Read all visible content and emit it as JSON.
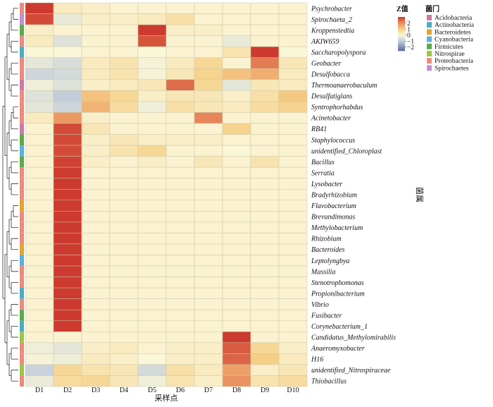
{
  "chart_data": {
    "type": "heatmap",
    "xlabel": "采样点",
    "ylabel": "菌属",
    "x": [
      "D1",
      "D2",
      "D3",
      "D4",
      "D5",
      "D6",
      "D7",
      "D8",
      "D9",
      "D10"
    ],
    "rows": [
      {
        "name": "Psychrobacter",
        "phylum": "Proteobacteria",
        "values": [
          3.0,
          0.3,
          0.2,
          0.1,
          0.1,
          0.1,
          0.1,
          0.1,
          0.1,
          0.1
        ]
      },
      {
        "name": "Spirochaeta_2",
        "phylum": "Spirochaetes",
        "values": [
          2.8,
          -0.3,
          0.2,
          0.2,
          0.3,
          0.6,
          0.1,
          0.1,
          0.1,
          0.1
        ]
      },
      {
        "name": "Kroppenstedtia",
        "phylum": "Firmicutes",
        "values": [
          0.2,
          0.1,
          0.1,
          0.1,
          3.0,
          0.2,
          0.2,
          0.1,
          0.1,
          0.1
        ]
      },
      {
        "name": "AKIW659",
        "phylum": "Proteobacteria",
        "values": [
          0.3,
          -0.5,
          0.1,
          0.1,
          2.7,
          0.1,
          0.1,
          -0.3,
          0.1,
          0.1
        ]
      },
      {
        "name": "Saccharopolyspora",
        "phylum": "Actinobacteria",
        "values": [
          0.0,
          0.0,
          0.1,
          0.1,
          0.0,
          0.1,
          0.1,
          0.5,
          3.0,
          0.0
        ]
      },
      {
        "name": "Geobacter",
        "phylum": "Proteobacteria",
        "values": [
          -0.4,
          -0.6,
          0.3,
          0.5,
          -0.1,
          0.3,
          0.8,
          0.1,
          2.2,
          0.4
        ]
      },
      {
        "name": "Desulfobacca",
        "phylum": "Proteobacteria",
        "values": [
          -0.8,
          -0.7,
          0.3,
          0.5,
          -0.1,
          0.4,
          0.9,
          1.2,
          1.5,
          0.3
        ]
      },
      {
        "name": "Thermoanaerobaculum",
        "phylum": "Acidobacteria",
        "values": [
          -0.2,
          -0.5,
          0.2,
          0.3,
          0.4,
          2.4,
          0.8,
          -0.4,
          0.4,
          0.3
        ]
      },
      {
        "name": "Desulfatiglans",
        "phylum": "Proteobacteria",
        "values": [
          -0.5,
          -1.0,
          1.2,
          0.8,
          0.2,
          0.4,
          0.4,
          0.2,
          0.6,
          1.1
        ]
      },
      {
        "name": "Syntrophorhabdus",
        "phylum": "Proteobacteria",
        "values": [
          -0.4,
          -0.8,
          1.4,
          0.7,
          -0.2,
          0.6,
          0.4,
          0.3,
          0.7,
          0.9
        ]
      },
      {
        "name": "Acinetobacter",
        "phylum": "Proteobacteria",
        "values": [
          0.3,
          1.8,
          0.2,
          0.1,
          0.1,
          0.1,
          2.1,
          0.1,
          0.1,
          0.1
        ]
      },
      {
        "name": "RB41",
        "phylum": "Acidobacteria",
        "values": [
          0.1,
          2.8,
          0.4,
          0.1,
          0.1,
          0.1,
          0.1,
          0.9,
          0.1,
          0.1
        ]
      },
      {
        "name": "Staphylococcus",
        "phylum": "Firmicutes",
        "values": [
          0.1,
          2.8,
          0.2,
          0.4,
          0.2,
          0.2,
          0.2,
          0.1,
          0.1,
          0.1
        ]
      },
      {
        "name": "unidentified_Chloroplast",
        "phylum": "Cyanobacteria",
        "values": [
          0.1,
          2.8,
          0.2,
          0.5,
          0.8,
          0.1,
          0.1,
          0.0,
          0.1,
          0.1
        ]
      },
      {
        "name": "Bacillus",
        "phylum": "Firmicutes",
        "values": [
          0.1,
          2.9,
          0.2,
          0.1,
          0.2,
          0.1,
          0.4,
          0.1,
          0.5,
          0.1
        ]
      },
      {
        "name": "Serratia",
        "phylum": "Proteobacteria",
        "values": [
          0.1,
          3.0,
          0.1,
          0.1,
          0.1,
          0.1,
          0.1,
          0.1,
          0.1,
          0.1
        ]
      },
      {
        "name": "Lysobacter",
        "phylum": "Proteobacteria",
        "values": [
          0.1,
          3.0,
          0.1,
          0.1,
          0.1,
          0.1,
          0.1,
          0.1,
          0.1,
          0.1
        ]
      },
      {
        "name": "Bradyrhizobium",
        "phylum": "Proteobacteria",
        "values": [
          0.1,
          3.0,
          0.1,
          0.1,
          0.1,
          0.1,
          0.1,
          0.1,
          0.1,
          0.1
        ]
      },
      {
        "name": "Flavobacterium",
        "phylum": "Bacteroidetes",
        "values": [
          0.1,
          3.0,
          0.1,
          0.1,
          0.1,
          0.1,
          0.1,
          0.1,
          0.1,
          0.1
        ]
      },
      {
        "name": "Brevundimonas",
        "phylum": "Proteobacteria",
        "values": [
          0.1,
          3.0,
          0.1,
          0.1,
          0.1,
          0.1,
          0.1,
          0.1,
          0.1,
          0.1
        ]
      },
      {
        "name": "Methylobacterium",
        "phylum": "Proteobacteria",
        "values": [
          0.1,
          3.0,
          0.1,
          0.1,
          0.1,
          0.1,
          0.1,
          0.1,
          0.1,
          0.1
        ]
      },
      {
        "name": "Rhizobium",
        "phylum": "Proteobacteria",
        "values": [
          0.1,
          3.0,
          0.1,
          0.1,
          0.1,
          0.1,
          0.1,
          0.1,
          0.1,
          0.1
        ]
      },
      {
        "name": "Bacteroides",
        "phylum": "Bacteroidetes",
        "values": [
          0.1,
          3.0,
          0.1,
          0.1,
          0.1,
          0.1,
          0.1,
          0.1,
          0.1,
          0.1
        ]
      },
      {
        "name": "Leptolyngbya",
        "phylum": "Cyanobacteria",
        "values": [
          0.1,
          3.0,
          0.1,
          0.1,
          0.1,
          0.1,
          0.1,
          0.1,
          0.1,
          0.1
        ]
      },
      {
        "name": "Massilia",
        "phylum": "Proteobacteria",
        "values": [
          0.1,
          3.0,
          0.1,
          0.1,
          0.1,
          0.1,
          0.1,
          0.1,
          0.1,
          0.1
        ]
      },
      {
        "name": "Stenotrophomonas",
        "phylum": "Proteobacteria",
        "values": [
          0.1,
          3.0,
          0.1,
          0.1,
          0.1,
          0.1,
          0.1,
          0.1,
          0.1,
          0.1
        ]
      },
      {
        "name": "Propionibacterium",
        "phylum": "Actinobacteria",
        "values": [
          0.1,
          3.0,
          0.1,
          0.1,
          0.1,
          0.1,
          0.1,
          0.1,
          0.1,
          0.1
        ]
      },
      {
        "name": "Vibrio",
        "phylum": "Proteobacteria",
        "values": [
          0.1,
          3.0,
          0.1,
          0.1,
          0.1,
          0.1,
          0.1,
          0.1,
          0.1,
          0.1
        ]
      },
      {
        "name": "Fusibacter",
        "phylum": "Firmicutes",
        "values": [
          0.1,
          3.0,
          0.1,
          0.1,
          0.1,
          0.1,
          0.1,
          0.1,
          0.1,
          0.1
        ]
      },
      {
        "name": "Corynebacterium_1",
        "phylum": "Actinobacteria",
        "values": [
          0.1,
          3.0,
          0.1,
          0.1,
          0.1,
          0.1,
          0.1,
          0.1,
          0.1,
          0.1
        ]
      },
      {
        "name": "Candidatus_Methylomirabilis",
        "phylum": "Nitrospirae",
        "values": [
          0.1,
          0.1,
          0.1,
          0.1,
          0.1,
          0.1,
          0.1,
          3.0,
          0.1,
          0.1
        ]
      },
      {
        "name": "Anaeromyxobacter",
        "phylum": "Proteobacteria",
        "values": [
          -0.2,
          -0.4,
          0.2,
          0.3,
          0.1,
          0.2,
          0.2,
          2.6,
          0.8,
          0.2
        ]
      },
      {
        "name": "H16",
        "phylum": "Proteobacteria",
        "values": [
          -0.1,
          -0.2,
          0.3,
          0.2,
          0.0,
          0.2,
          0.2,
          2.5,
          1.0,
          0.3
        ]
      },
      {
        "name": "unidentified_Nitrospiraceae",
        "phylum": "Nitrospirae",
        "values": [
          -0.9,
          0.8,
          0.5,
          0.4,
          -0.7,
          0.6,
          0.3,
          1.7,
          0.2,
          0.4
        ]
      },
      {
        "name": "Thiobacillus",
        "phylum": "Proteobacteria",
        "values": [
          -0.3,
          0.7,
          0.8,
          0.4,
          -0.2,
          0.5,
          0.2,
          1.9,
          0.5,
          0.7
        ]
      }
    ],
    "color_scale": {
      "title": "Z值",
      "ticks": [
        2,
        1,
        0,
        -1,
        -2
      ],
      "range": [
        -2.6,
        3.0
      ],
      "stops": [
        {
          "value": -2.6,
          "color": "#5a6f97"
        },
        {
          "value": -1.0,
          "color": "#c3cddb"
        },
        {
          "value": 0.0,
          "color": "#faf6d8"
        },
        {
          "value": 1.0,
          "color": "#f6cf86"
        },
        {
          "value": 2.0,
          "color": "#ea8c5c"
        },
        {
          "value": 3.0,
          "color": "#cd3a2f"
        }
      ]
    },
    "legend": {
      "title": "菌门",
      "placement": "top-right",
      "items": [
        {
          "name": "Acidobacteria",
          "color": "#cf79a8"
        },
        {
          "name": "Actinobacteria",
          "color": "#4aaec1"
        },
        {
          "name": "Bacteroidetes",
          "color": "#e3a52f"
        },
        {
          "name": "Cyanobacteria",
          "color": "#58b2e0"
        },
        {
          "name": "Firmicutes",
          "color": "#5eaa48"
        },
        {
          "name": "Nitrospirae",
          "color": "#9dc646"
        },
        {
          "name": "Proteobacteria",
          "color": "#ee8a7b"
        },
        {
          "name": "Spirochaetes",
          "color": "#c58ed0"
        }
      ]
    }
  }
}
